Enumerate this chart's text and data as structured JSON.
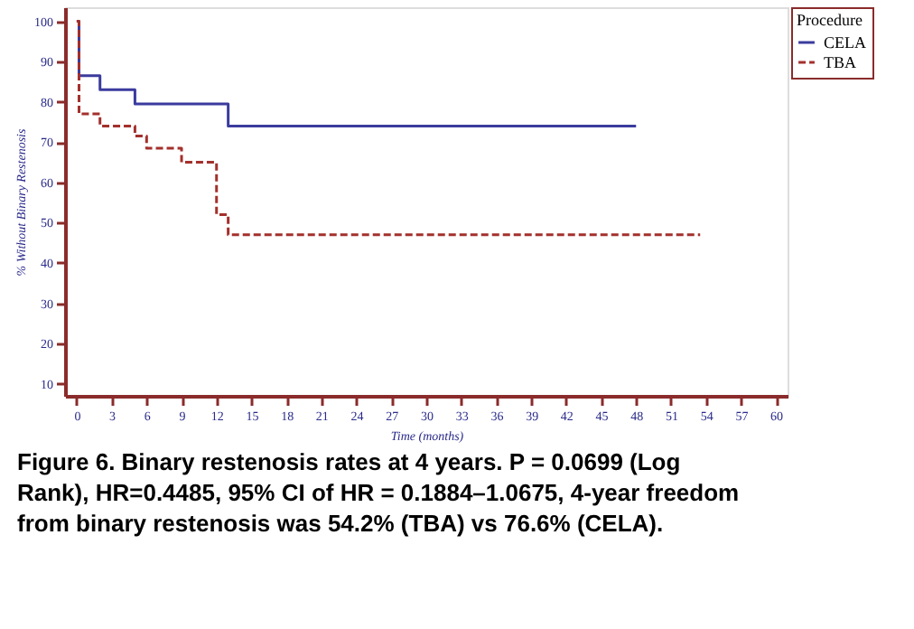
{
  "chart_data": {
    "type": "step",
    "xlabel": "Time (months)",
    "ylabel": "% Without Binary Restenosis",
    "legend_title": "Procedure",
    "legend": "right",
    "grid": false,
    "marker": "none",
    "xlim": [
      -1,
      61
    ],
    "ylim": [
      7,
      103.5
    ],
    "xticks": [
      0,
      3,
      6,
      9,
      12,
      15,
      18,
      21,
      24,
      27,
      30,
      33,
      36,
      39,
      42,
      45,
      48,
      51,
      54,
      57,
      60
    ],
    "yticks": [
      10,
      20,
      30,
      40,
      50,
      60,
      70,
      80,
      90,
      100
    ],
    "series": [
      {
        "name": "CELA",
        "color": "#3b3b9e",
        "line_style": "solid",
        "x": [
          0,
          0.2,
          2,
          5,
          13,
          48
        ],
        "values": [
          100,
          86.5,
          83,
          79.5,
          74,
          74
        ]
      },
      {
        "name": "TBA",
        "color": "#a3302c",
        "line_style": "dashed",
        "x": [
          0,
          0.2,
          2,
          5,
          6,
          9,
          12,
          13,
          53.5
        ],
        "values": [
          100,
          77,
          74,
          71.5,
          68.5,
          65,
          52,
          47,
          47
        ]
      }
    ],
    "annotations": [
      "Figure 6. Binary restenosis rates at 4 years. P = 0.0699 (Log Rank), HR=0.4485, 95% CI of HR = 0.1884–1.0675, 4-year freedom from binary restenosis was 54.2% (TBA) vs 76.6% (CELA)."
    ]
  }
}
